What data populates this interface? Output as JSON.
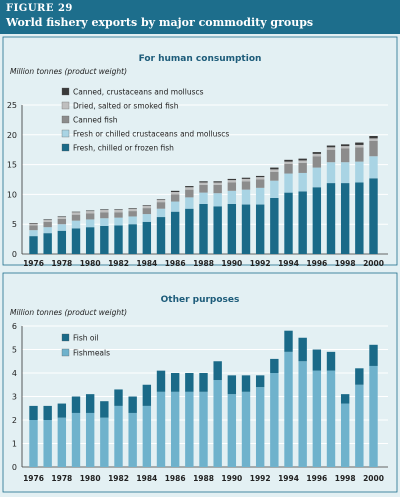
{
  "figure": {
    "label": "FIGURE 29",
    "title": "World fishery exports by major commodity groups"
  },
  "colors": {
    "header_bg": "#1d6e8c",
    "panel_bg": "#e3f0f3",
    "canned_crustaceans": "#3a3a3a",
    "dried_salted": "#bfbfbf",
    "canned_fish": "#8c8c8c",
    "fresh_crustaceans": "#a9d4e4",
    "fresh_fish": "#1a6a88",
    "fish_oil": "#1a6a88",
    "fishmeals": "#6fb2cc"
  },
  "chart_data": [
    {
      "type": "bar",
      "stacked": true,
      "title": "For human consumption",
      "ylabel": "Million tonnes (product weight)",
      "ylim": [
        0,
        25
      ],
      "yticks": [
        0,
        5,
        10,
        15,
        20,
        25
      ],
      "x": [
        1976,
        1977,
        1978,
        1979,
        1980,
        1981,
        1982,
        1983,
        1984,
        1985,
        1986,
        1987,
        1988,
        1989,
        1990,
        1991,
        1992,
        1993,
        1994,
        1995,
        1996,
        1997,
        1998,
        1999,
        2000
      ],
      "xtick_labels": [
        "1976",
        "1978",
        "1980",
        "1982",
        "1984",
        "1986",
        "1988",
        "1990",
        "1992",
        "1994",
        "1996",
        "1998",
        "2000"
      ],
      "legend_position": "top-left",
      "series": [
        {
          "name": "Fresh, chilled or frozen fish",
          "color": "#1a6a88",
          "values": [
            3.0,
            3.5,
            3.9,
            4.3,
            4.5,
            4.7,
            4.8,
            5.0,
            5.4,
            6.2,
            7.1,
            7.6,
            8.4,
            8.0,
            8.4,
            8.3,
            8.3,
            9.4,
            10.3,
            10.5,
            11.2,
            11.9,
            11.9,
            12.0,
            12.7
          ]
        },
        {
          "name": "Fresh or chilled crustaceans and molluscs",
          "color": "#a9d4e4",
          "values": [
            1.0,
            1.0,
            1.1,
            1.3,
            1.3,
            1.3,
            1.3,
            1.3,
            1.3,
            1.4,
            1.7,
            1.9,
            1.9,
            2.2,
            2.2,
            2.5,
            2.8,
            2.9,
            3.2,
            3.1,
            3.3,
            3.5,
            3.5,
            3.5,
            3.7
          ]
        },
        {
          "name": "Canned fish",
          "color": "#8c8c8c",
          "values": [
            0.8,
            0.9,
            0.9,
            1.0,
            1.0,
            1.0,
            0.9,
            0.9,
            1.0,
            1.1,
            1.2,
            1.3,
            1.3,
            1.4,
            1.4,
            1.4,
            1.4,
            1.5,
            1.6,
            1.7,
            1.9,
            2.1,
            2.3,
            2.4,
            2.6
          ]
        },
        {
          "name": "Dried, salted or smoked fish",
          "color": "#bfbfbf",
          "values": [
            0.3,
            0.3,
            0.3,
            0.4,
            0.4,
            0.4,
            0.4,
            0.4,
            0.4,
            0.4,
            0.4,
            0.4,
            0.4,
            0.4,
            0.4,
            0.4,
            0.4,
            0.4,
            0.4,
            0.4,
            0.4,
            0.4,
            0.4,
            0.4,
            0.4
          ]
        },
        {
          "name": "Canned, crustaceans and molluscs",
          "color": "#3a3a3a",
          "values": [
            0.1,
            0.1,
            0.1,
            0.1,
            0.1,
            0.1,
            0.1,
            0.1,
            0.1,
            0.1,
            0.2,
            0.2,
            0.2,
            0.2,
            0.2,
            0.2,
            0.2,
            0.3,
            0.3,
            0.3,
            0.3,
            0.3,
            0.3,
            0.4,
            0.4
          ]
        }
      ]
    },
    {
      "type": "bar",
      "stacked": true,
      "title": "Other purposes",
      "ylabel": "Million tonnes (product weight)",
      "ylim": [
        0,
        6
      ],
      "yticks": [
        0,
        1,
        2,
        3,
        4,
        5,
        6
      ],
      "x": [
        1976,
        1977,
        1978,
        1979,
        1980,
        1981,
        1982,
        1983,
        1984,
        1985,
        1986,
        1987,
        1988,
        1989,
        1990,
        1991,
        1992,
        1993,
        1994,
        1995,
        1996,
        1997,
        1998,
        1999,
        2000
      ],
      "xtick_labels": [
        "1976",
        "1978",
        "1980",
        "1982",
        "1984",
        "1986",
        "1988",
        "1990",
        "1992",
        "1994",
        "1996",
        "1998",
        "2000"
      ],
      "legend_position": "top-left",
      "series": [
        {
          "name": "Fishmeals",
          "color": "#6fb2cc",
          "values": [
            2.0,
            2.0,
            2.1,
            2.3,
            2.3,
            2.1,
            2.6,
            2.3,
            2.6,
            3.2,
            3.2,
            3.2,
            3.2,
            3.7,
            3.1,
            3.2,
            3.4,
            4.0,
            4.9,
            4.5,
            4.1,
            4.1,
            2.7,
            3.5,
            4.3
          ]
        },
        {
          "name": "Fish oil",
          "color": "#1a6a88",
          "values": [
            0.6,
            0.6,
            0.6,
            0.7,
            0.8,
            0.7,
            0.7,
            0.7,
            0.9,
            0.9,
            0.8,
            0.8,
            0.8,
            0.8,
            0.8,
            0.7,
            0.5,
            0.6,
            0.9,
            1.0,
            0.9,
            0.8,
            0.4,
            0.7,
            0.9
          ]
        }
      ]
    }
  ]
}
